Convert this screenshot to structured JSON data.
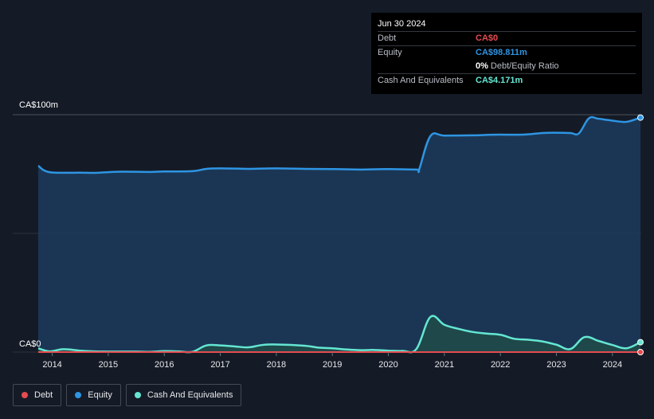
{
  "tooltip": {
    "date": "Jun 30 2024",
    "debt_label": "Debt",
    "debt_value": "CA$0",
    "equity_label": "Equity",
    "equity_value": "CA$98.811m",
    "ratio_value": "0%",
    "ratio_label": "Debt/Equity Ratio",
    "cash_label": "Cash And Equivalents",
    "cash_value": "CA$4.171m"
  },
  "legend": {
    "debt": "Debt",
    "equity": "Equity",
    "cash": "Cash And Equivalents"
  },
  "colors": {
    "background": "#151b26",
    "debt": "#e64b50",
    "equity": "#2e95e3",
    "cash": "#64e6d2",
    "equity_fill": "#1c3a5a",
    "cash_fill": "#1f4a48"
  },
  "chart_data": {
    "type": "area",
    "ylabel_top": "CA$100m",
    "ylabel_bottom": "CA$0",
    "ylim": [
      0,
      100
    ],
    "xlim": [
      2013.75,
      2024.5
    ],
    "x_ticks": [
      "2014",
      "2015",
      "2016",
      "2017",
      "2018",
      "2019",
      "2020",
      "2021",
      "2022",
      "2023",
      "2024"
    ],
    "grid": true,
    "legend_position": "bottom-left",
    "series": [
      {
        "name": "Equity",
        "key": "equity",
        "points": [
          [
            2013.75,
            78.5
          ],
          [
            2013.95,
            75.8
          ],
          [
            2014.5,
            75.6
          ],
          [
            2014.75,
            75.5
          ],
          [
            2015.0,
            75.8
          ],
          [
            2015.25,
            76.0
          ],
          [
            2015.75,
            75.9
          ],
          [
            2016.0,
            76.1
          ],
          [
            2016.5,
            76.2
          ],
          [
            2016.75,
            77.2
          ],
          [
            2017.0,
            77.4
          ],
          [
            2017.5,
            77.2
          ],
          [
            2017.75,
            77.3
          ],
          [
            2018.0,
            77.4
          ],
          [
            2018.5,
            77.2
          ],
          [
            2019.0,
            77.1
          ],
          [
            2019.5,
            76.9
          ],
          [
            2019.75,
            77.0
          ],
          [
            2020.0,
            77.1
          ],
          [
            2020.5,
            76.9
          ],
          [
            2020.55,
            77.0
          ],
          [
            2020.75,
            91.0
          ],
          [
            2021.0,
            91.2
          ],
          [
            2021.5,
            91.3
          ],
          [
            2021.75,
            91.5
          ],
          [
            2022.0,
            91.6
          ],
          [
            2022.4,
            91.6
          ],
          [
            2022.75,
            92.3
          ],
          [
            2023.0,
            92.4
          ],
          [
            2023.25,
            92.3
          ],
          [
            2023.4,
            92.1
          ],
          [
            2023.58,
            98.5
          ],
          [
            2023.75,
            98.3
          ],
          [
            2024.0,
            97.5
          ],
          [
            2024.25,
            97.0
          ],
          [
            2024.5,
            98.8
          ]
        ]
      },
      {
        "name": "Cash And Equivalents",
        "key": "cash",
        "points": [
          [
            2013.75,
            1.6
          ],
          [
            2013.95,
            0.3
          ],
          [
            2014.2,
            1.2
          ],
          [
            2014.5,
            0.6
          ],
          [
            2014.75,
            0.3
          ],
          [
            2015.0,
            0.2
          ],
          [
            2015.5,
            0.2
          ],
          [
            2015.75,
            0.1
          ],
          [
            2016.0,
            0.4
          ],
          [
            2016.25,
            0.3
          ],
          [
            2016.5,
            0.1
          ],
          [
            2016.75,
            2.8
          ],
          [
            2017.0,
            2.8
          ],
          [
            2017.25,
            2.4
          ],
          [
            2017.5,
            2.0
          ],
          [
            2017.75,
            3.0
          ],
          [
            2018.0,
            3.2
          ],
          [
            2018.5,
            2.7
          ],
          [
            2018.75,
            1.9
          ],
          [
            2019.0,
            1.6
          ],
          [
            2019.25,
            1.1
          ],
          [
            2019.5,
            0.8
          ],
          [
            2019.75,
            0.9
          ],
          [
            2020.0,
            0.6
          ],
          [
            2020.25,
            0.5
          ],
          [
            2020.5,
            1.3
          ],
          [
            2020.75,
            14.8
          ],
          [
            2021.0,
            11.5
          ],
          [
            2021.25,
            9.8
          ],
          [
            2021.5,
            8.5
          ],
          [
            2021.75,
            7.8
          ],
          [
            2022.0,
            7.3
          ],
          [
            2022.25,
            5.6
          ],
          [
            2022.5,
            5.2
          ],
          [
            2022.75,
            4.5
          ],
          [
            2023.0,
            3.1
          ],
          [
            2023.25,
            1.3
          ],
          [
            2023.5,
            6.3
          ],
          [
            2023.75,
            4.7
          ],
          [
            2024.0,
            3.0
          ],
          [
            2024.25,
            1.6
          ],
          [
            2024.5,
            4.171
          ]
        ]
      },
      {
        "name": "Debt",
        "key": "debt",
        "points": [
          [
            2013.75,
            0
          ],
          [
            2024.5,
            0
          ]
        ]
      }
    ]
  }
}
